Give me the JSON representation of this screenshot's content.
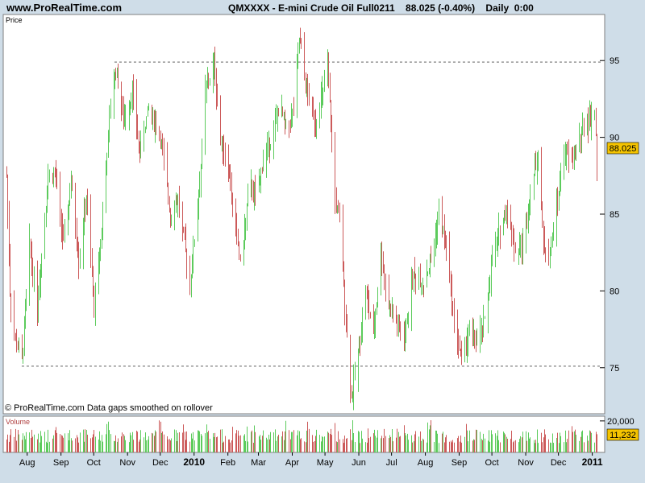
{
  "header": {
    "site": "www.ProRealTime.com",
    "title": "QMXXXX - E-mini Crude Oil Full0211    88.025 (-0.40%)    Daily  0:00"
  },
  "price_panel": {
    "label": "Price",
    "footnote": "© ProRealTime.com  Data gaps smoothed on rollover",
    "last_price": "88.025"
  },
  "volume_panel": {
    "label": "Volume",
    "last_volume": "11,232"
  },
  "colors": {
    "up": "#5ccb5c",
    "down": "#cc5a5a",
    "badge": "#f5c400",
    "panel_bg": "#ffffff",
    "frame_bg": "#cfdde8"
  },
  "chart_data": {
    "type": "bar",
    "subtype": "ohlc-bars-with-volume",
    "x_axis": {
      "type": "date",
      "start": "2009-07-13",
      "end": "2011-01-05",
      "tick_labels": [
        "Aug",
        "Sep",
        "Oct",
        "Nov",
        "Dec",
        "2010",
        "Feb",
        "Mar",
        "Apr",
        "May",
        "Jun",
        "Jul",
        "Aug",
        "Sep",
        "Oct",
        "Nov",
        "Dec",
        "2011"
      ]
    },
    "y_axis": {
      "ticks": [
        75,
        80,
        85,
        90,
        95
      ],
      "range": [
        72,
        98
      ]
    },
    "volume_axis": {
      "ticks": [
        20000
      ],
      "range": [
        0,
        23000
      ]
    },
    "horizontal_lines": [
      {
        "y": 94.9,
        "style": "dotted",
        "from": "2009-10-20"
      },
      {
        "y": 75.1,
        "style": "dotted",
        "from": "2009-07-27"
      }
    ],
    "price_path": [
      {
        "x": "2009-07-13",
        "y": 87.5
      },
      {
        "x": "2009-07-16",
        "y": 80.0
      },
      {
        "x": "2009-07-20",
        "y": 77.0
      },
      {
        "x": "2009-07-27",
        "y": 75.5
      },
      {
        "x": "2009-08-03",
        "y": 83.0
      },
      {
        "x": "2009-08-10",
        "y": 79.0
      },
      {
        "x": "2009-08-20",
        "y": 87.5
      },
      {
        "x": "2009-08-27",
        "y": 87.5
      },
      {
        "x": "2009-09-03",
        "y": 83.0
      },
      {
        "x": "2009-09-10",
        "y": 87.0
      },
      {
        "x": "2009-09-17",
        "y": 82.0
      },
      {
        "x": "2009-09-24",
        "y": 86.0
      },
      {
        "x": "2009-10-01",
        "y": 79.0
      },
      {
        "x": "2009-10-08",
        "y": 84.0
      },
      {
        "x": "2009-10-16",
        "y": 92.0
      },
      {
        "x": "2009-10-21",
        "y": 94.6
      },
      {
        "x": "2009-10-28",
        "y": 91.0
      },
      {
        "x": "2009-11-05",
        "y": 93.0
      },
      {
        "x": "2009-11-12",
        "y": 89.0
      },
      {
        "x": "2009-11-20",
        "y": 92.0
      },
      {
        "x": "2009-12-01",
        "y": 90.0
      },
      {
        "x": "2009-12-10",
        "y": 85.0
      },
      {
        "x": "2009-12-17",
        "y": 86.0
      },
      {
        "x": "2009-12-28",
        "y": 80.5
      },
      {
        "x": "2010-01-06",
        "y": 87.0
      },
      {
        "x": "2010-01-11",
        "y": 93.0
      },
      {
        "x": "2010-01-19",
        "y": 94.7
      },
      {
        "x": "2010-01-25",
        "y": 90.0
      },
      {
        "x": "2010-02-01",
        "y": 88.0
      },
      {
        "x": "2010-02-08",
        "y": 84.0
      },
      {
        "x": "2010-02-13",
        "y": 81.5
      },
      {
        "x": "2010-02-20",
        "y": 87.0
      },
      {
        "x": "2010-02-27",
        "y": 86.0
      },
      {
        "x": "2010-03-06",
        "y": 89.0
      },
      {
        "x": "2010-03-13",
        "y": 90.0
      },
      {
        "x": "2010-03-20",
        "y": 92.0
      },
      {
        "x": "2010-03-27",
        "y": 90.5
      },
      {
        "x": "2010-04-03",
        "y": 92.0
      },
      {
        "x": "2010-04-07",
        "y": 96.5
      },
      {
        "x": "2010-04-14",
        "y": 93.0
      },
      {
        "x": "2010-04-22",
        "y": 91.0
      },
      {
        "x": "2010-04-29",
        "y": 93.0
      },
      {
        "x": "2010-05-03",
        "y": 94.5
      },
      {
        "x": "2010-05-10",
        "y": 86.0
      },
      {
        "x": "2010-05-15",
        "y": 84.0
      },
      {
        "x": "2010-05-20",
        "y": 78.0
      },
      {
        "x": "2010-05-25",
        "y": 73.0
      },
      {
        "x": "2010-05-31",
        "y": 76.0
      },
      {
        "x": "2010-06-07",
        "y": 80.0
      },
      {
        "x": "2010-06-14",
        "y": 77.0
      },
      {
        "x": "2010-06-21",
        "y": 82.5
      },
      {
        "x": "2010-06-28",
        "y": 79.0
      },
      {
        "x": "2010-07-05",
        "y": 78.0
      },
      {
        "x": "2010-07-12",
        "y": 76.5
      },
      {
        "x": "2010-07-20",
        "y": 81.0
      },
      {
        "x": "2010-07-30",
        "y": 80.5
      },
      {
        "x": "2010-08-06",
        "y": 82.0
      },
      {
        "x": "2010-08-13",
        "y": 85.0
      },
      {
        "x": "2010-08-20",
        "y": 83.0
      },
      {
        "x": "2010-08-27",
        "y": 78.0
      },
      {
        "x": "2010-09-03",
        "y": 75.5
      },
      {
        "x": "2010-09-10",
        "y": 77.5
      },
      {
        "x": "2010-09-17",
        "y": 76.5
      },
      {
        "x": "2010-09-24",
        "y": 78.0
      },
      {
        "x": "2010-10-01",
        "y": 82.0
      },
      {
        "x": "2010-10-08",
        "y": 84.0
      },
      {
        "x": "2010-10-15",
        "y": 85.5
      },
      {
        "x": "2010-10-22",
        "y": 82.5
      },
      {
        "x": "2010-10-29",
        "y": 83.0
      },
      {
        "x": "2010-11-05",
        "y": 86.5
      },
      {
        "x": "2010-11-12",
        "y": 89.0
      },
      {
        "x": "2010-11-17",
        "y": 83.0
      },
      {
        "x": "2010-11-22",
        "y": 82.0
      },
      {
        "x": "2010-11-29",
        "y": 85.5
      },
      {
        "x": "2010-12-06",
        "y": 89.0
      },
      {
        "x": "2010-12-13",
        "y": 88.5
      },
      {
        "x": "2010-12-20",
        "y": 90.0
      },
      {
        "x": "2010-12-27",
        "y": 91.0
      },
      {
        "x": "2011-01-03",
        "y": 91.5
      },
      {
        "x": "2011-01-05",
        "y": 88.0
      }
    ],
    "last_price": 88.025,
    "last_volume": 11232
  }
}
